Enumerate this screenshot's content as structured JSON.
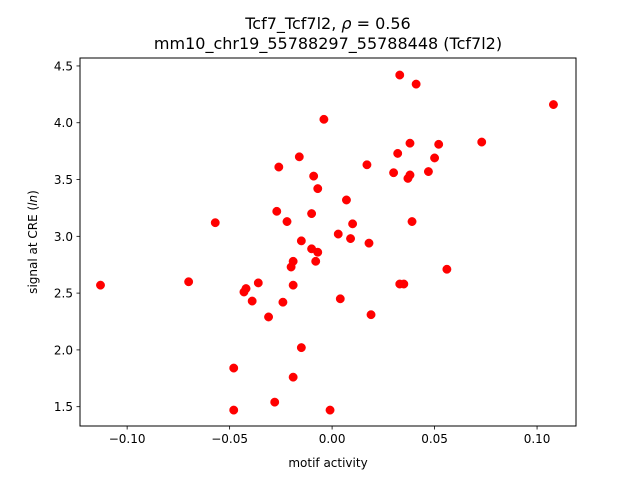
{
  "chart_data": {
    "type": "scatter",
    "title_main": "Tcf7_Tcf7l2, ",
    "title_rho_symbol": "ρ",
    "title_rho_text": " = 0.56",
    "subtitle": "mm10_chr19_55788297_55788448 (Tcf7l2)",
    "xlabel": "motif activity",
    "ylabel_prefix": "signal at CRE (",
    "ylabel_italic": "ln",
    "ylabel_suffix": ")",
    "xlim": [
      -0.123,
      0.119
    ],
    "ylim": [
      1.33,
      4.57
    ],
    "xticks": [
      -0.1,
      -0.05,
      0.0,
      0.05,
      0.1
    ],
    "xtick_labels": [
      "−0.10",
      "−0.05",
      "0.00",
      "0.05",
      "0.10"
    ],
    "yticks": [
      1.5,
      2.0,
      2.5,
      3.0,
      3.5,
      4.0,
      4.5
    ],
    "ytick_labels": [
      "1.5",
      "2.0",
      "2.5",
      "3.0",
      "3.5",
      "4.0",
      "4.5"
    ],
    "grid": false,
    "marker_color": "#ff0000",
    "points": [
      {
        "x": -0.113,
        "y": 2.57
      },
      {
        "x": -0.07,
        "y": 2.6
      },
      {
        "x": -0.057,
        "y": 3.12
      },
      {
        "x": -0.048,
        "y": 1.84
      },
      {
        "x": -0.048,
        "y": 1.47
      },
      {
        "x": -0.043,
        "y": 2.51
      },
      {
        "x": -0.042,
        "y": 2.54
      },
      {
        "x": -0.039,
        "y": 2.43
      },
      {
        "x": -0.036,
        "y": 2.59
      },
      {
        "x": -0.031,
        "y": 2.29
      },
      {
        "x": -0.028,
        "y": 1.54
      },
      {
        "x": -0.027,
        "y": 3.22
      },
      {
        "x": -0.026,
        "y": 3.61
      },
      {
        "x": -0.024,
        "y": 2.42
      },
      {
        "x": -0.022,
        "y": 3.13
      },
      {
        "x": -0.02,
        "y": 2.73
      },
      {
        "x": -0.019,
        "y": 2.78
      },
      {
        "x": -0.019,
        "y": 1.76
      },
      {
        "x": -0.019,
        "y": 2.57
      },
      {
        "x": -0.016,
        "y": 3.7
      },
      {
        "x": -0.015,
        "y": 2.96
      },
      {
        "x": -0.015,
        "y": 2.02
      },
      {
        "x": -0.01,
        "y": 3.2
      },
      {
        "x": -0.01,
        "y": 2.89
      },
      {
        "x": -0.009,
        "y": 3.53
      },
      {
        "x": -0.008,
        "y": 2.78
      },
      {
        "x": -0.007,
        "y": 3.42
      },
      {
        "x": -0.007,
        "y": 2.86
      },
      {
        "x": -0.004,
        "y": 4.03
      },
      {
        "x": -0.001,
        "y": 1.47
      },
      {
        "x": 0.003,
        "y": 3.02
      },
      {
        "x": 0.004,
        "y": 2.45
      },
      {
        "x": 0.007,
        "y": 3.32
      },
      {
        "x": 0.009,
        "y": 2.98
      },
      {
        "x": 0.01,
        "y": 3.11
      },
      {
        "x": 0.017,
        "y": 3.63
      },
      {
        "x": 0.018,
        "y": 2.94
      },
      {
        "x": 0.019,
        "y": 2.31
      },
      {
        "x": 0.03,
        "y": 3.56
      },
      {
        "x": 0.032,
        "y": 3.73
      },
      {
        "x": 0.033,
        "y": 4.42
      },
      {
        "x": 0.033,
        "y": 2.58
      },
      {
        "x": 0.035,
        "y": 2.58
      },
      {
        "x": 0.037,
        "y": 3.51
      },
      {
        "x": 0.038,
        "y": 3.54
      },
      {
        "x": 0.038,
        "y": 3.82
      },
      {
        "x": 0.039,
        "y": 3.13
      },
      {
        "x": 0.041,
        "y": 4.34
      },
      {
        "x": 0.047,
        "y": 3.57
      },
      {
        "x": 0.05,
        "y": 3.69
      },
      {
        "x": 0.052,
        "y": 3.81
      },
      {
        "x": 0.056,
        "y": 2.71
      },
      {
        "x": 0.073,
        "y": 3.83
      },
      {
        "x": 0.108,
        "y": 4.16
      }
    ]
  }
}
